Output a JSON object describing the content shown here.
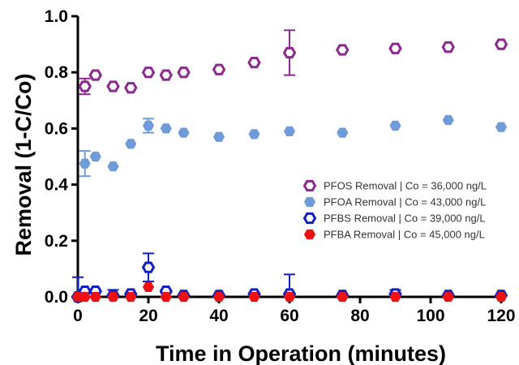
{
  "chart_data": {
    "type": "scatter",
    "xlabel": "Time in Operation (minutes)",
    "ylabel": "Removal (1-C/Co)",
    "xlim": [
      0,
      120
    ],
    "ylim": [
      0,
      1.0
    ],
    "xticks": [
      0,
      20,
      40,
      60,
      80,
      100,
      120
    ],
    "yticks": [
      0.0,
      0.2,
      0.4,
      0.6,
      0.8,
      1.0
    ],
    "xtick_labels": [
      "0",
      "20",
      "40",
      "60",
      "80",
      "100",
      "120"
    ],
    "ytick_labels": [
      "0.0",
      "0.2",
      "0.4",
      "0.6",
      "0.8",
      "1.0"
    ],
    "grid": false,
    "legend_position": "right",
    "series": [
      {
        "name": "PFOS Removal | Co = 36,000 ng/L",
        "color": "#8B2A8E",
        "marker": "hexagon-open",
        "x": [
          2,
          5,
          10,
          15,
          20,
          25,
          30,
          40,
          50,
          60,
          75,
          90,
          105,
          120
        ],
        "y": [
          0.75,
          0.79,
          0.75,
          0.745,
          0.8,
          0.79,
          0.8,
          0.81,
          0.835,
          0.87,
          0.88,
          0.885,
          0.89,
          0.9
        ],
        "err": [
          0.028,
          0.0,
          0.0,
          0.0,
          0.0,
          0.0,
          0.0,
          0.0,
          0.0,
          0.08,
          0.0,
          0.0,
          0.0,
          0.0
        ]
      },
      {
        "name": "PFOA  Removal | Co = 43,000 ng/L",
        "color": "#6F9BD8",
        "marker": "hexagon-filled",
        "x": [
          2,
          5,
          10,
          15,
          20,
          25,
          30,
          40,
          50,
          60,
          75,
          90,
          105,
          120
        ],
        "y": [
          0.475,
          0.5,
          0.465,
          0.545,
          0.61,
          0.6,
          0.585,
          0.57,
          0.58,
          0.59,
          0.585,
          0.61,
          0.63,
          0.605
        ],
        "err": [
          0.045,
          0.0,
          0.0,
          0.0,
          0.025,
          0.0,
          0.0,
          0.0,
          0.0,
          0.0,
          0.0,
          0.0,
          0.0,
          0.0
        ]
      },
      {
        "name": "PFBS Removal | Co = 39,000 ng/L",
        "color": "#1020C0",
        "marker": "hexagon-open",
        "x": [
          0,
          2,
          5,
          10,
          15,
          20,
          25,
          30,
          40,
          50,
          60,
          75,
          90,
          105,
          120
        ],
        "y": [
          0.0,
          0.02,
          0.02,
          0.005,
          0.01,
          0.105,
          0.02,
          0.005,
          0.005,
          0.01,
          0.01,
          0.005,
          0.01,
          0.005,
          0.005
        ],
        "err": [
          0.07,
          0.0,
          0.0,
          0.02,
          0.0,
          0.05,
          0.0,
          0.0,
          0.0,
          0.0,
          0.07,
          0.0,
          0.015,
          0.0,
          0.0
        ]
      },
      {
        "name": "PFBA Removal | Co = 45,000 ng/L",
        "color": "#EE1111",
        "marker": "hexagon-filled",
        "x": [
          0,
          2,
          5,
          10,
          15,
          20,
          25,
          30,
          40,
          50,
          60,
          75,
          90,
          105,
          120
        ],
        "y": [
          0.0,
          0.0,
          0.0,
          0.0,
          0.0,
          0.035,
          0.0,
          0.0,
          0.0,
          0.0,
          0.0,
          0.0,
          0.0,
          0.0,
          0.0
        ],
        "err": [
          0.0,
          0.0,
          0.0,
          0.0,
          0.0,
          0.0,
          0.0,
          0.0,
          0.0,
          0.0,
          0.0,
          0.0,
          0.0,
          0.0,
          0.0
        ]
      }
    ]
  }
}
